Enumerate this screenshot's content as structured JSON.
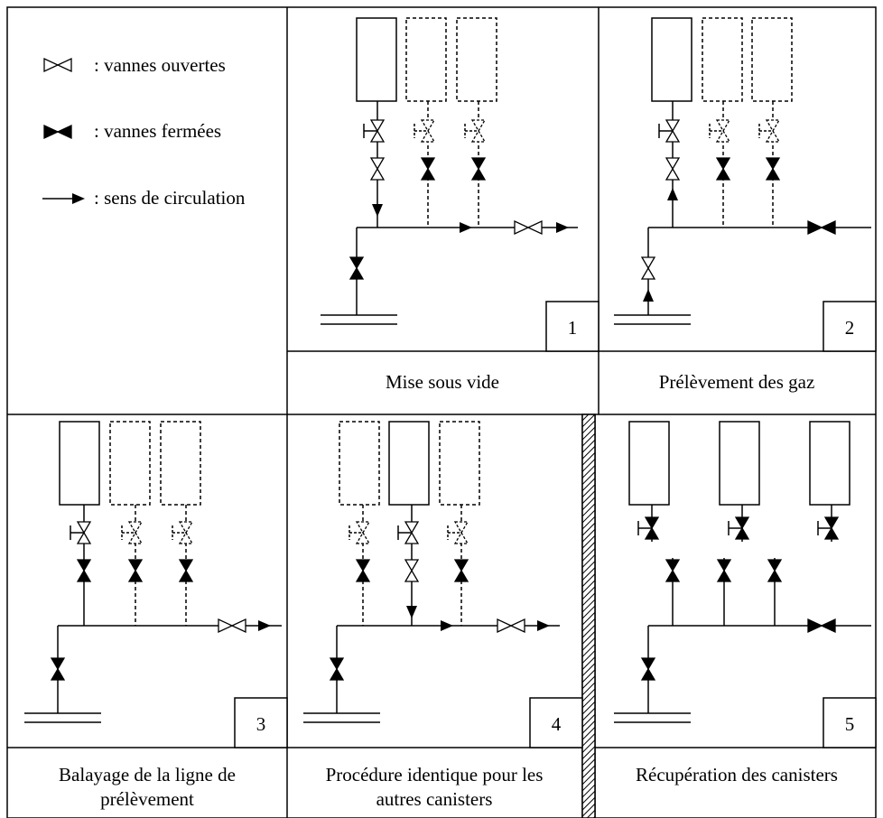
{
  "legend": {
    "open_valves": ": vannes ouvertes",
    "closed_valves": ": vannes fermées",
    "flow_direction": ": sens de circulation"
  },
  "panels": [
    {
      "number": "1",
      "caption": "Mise sous vide"
    },
    {
      "number": "2",
      "caption": "Prélèvement des gaz"
    },
    {
      "number": "3",
      "caption_line1": "Balayage de la  ligne de",
      "caption_line2": "prélèvement"
    },
    {
      "number": "4",
      "caption_line1": "Procédure identique pour les",
      "caption_line2": "autres canisters"
    },
    {
      "number": "5",
      "caption": "Récupération des canisters"
    }
  ]
}
